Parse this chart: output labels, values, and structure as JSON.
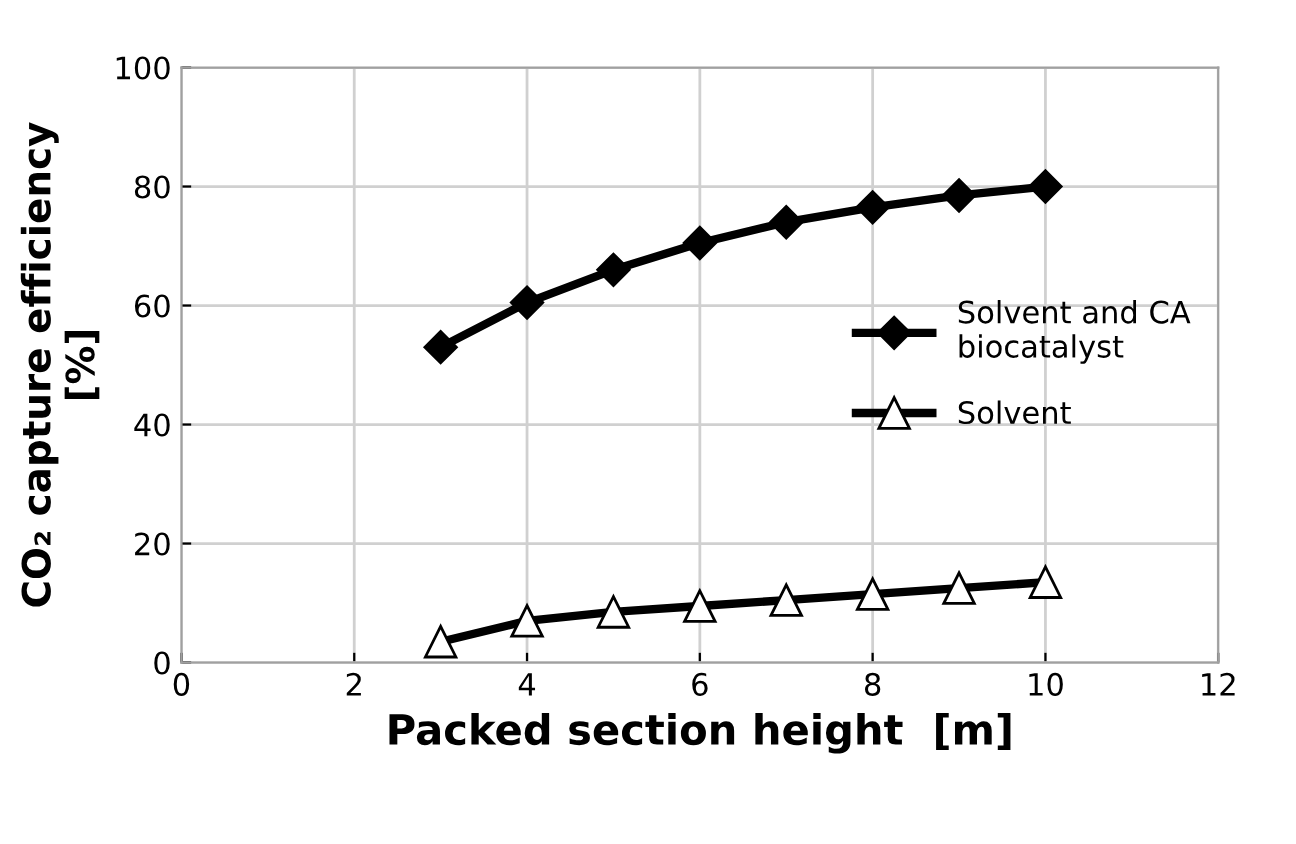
{
  "chart_data": {
    "type": "line",
    "xlabel": "Packed section height  [m]",
    "ylabel": "CO₂ capture efficiency\n[%]",
    "x": [
      3,
      4,
      5,
      6,
      7,
      8,
      9,
      10
    ],
    "series": [
      {
        "name": "Solvent and CA\nbiocatalyst",
        "color": "#000000",
        "marker": "diamond",
        "values": [
          53,
          60.5,
          66,
          70.5,
          74,
          76.5,
          78.5,
          80
        ]
      },
      {
        "name": "Solvent",
        "color": "#000000",
        "marker": "triangle",
        "values": [
          3.5,
          7,
          8.5,
          9.5,
          10.5,
          11.5,
          12.5,
          13.5
        ]
      }
    ],
    "xlim": [
      0,
      12
    ],
    "xticks": [
      0,
      2,
      4,
      6,
      8,
      10,
      12
    ],
    "ylim": [
      0,
      100
    ],
    "yticks": [
      0,
      20,
      40,
      60,
      80,
      100
    ],
    "grid": true,
    "legend": "right",
    "line_style": "solid"
  }
}
